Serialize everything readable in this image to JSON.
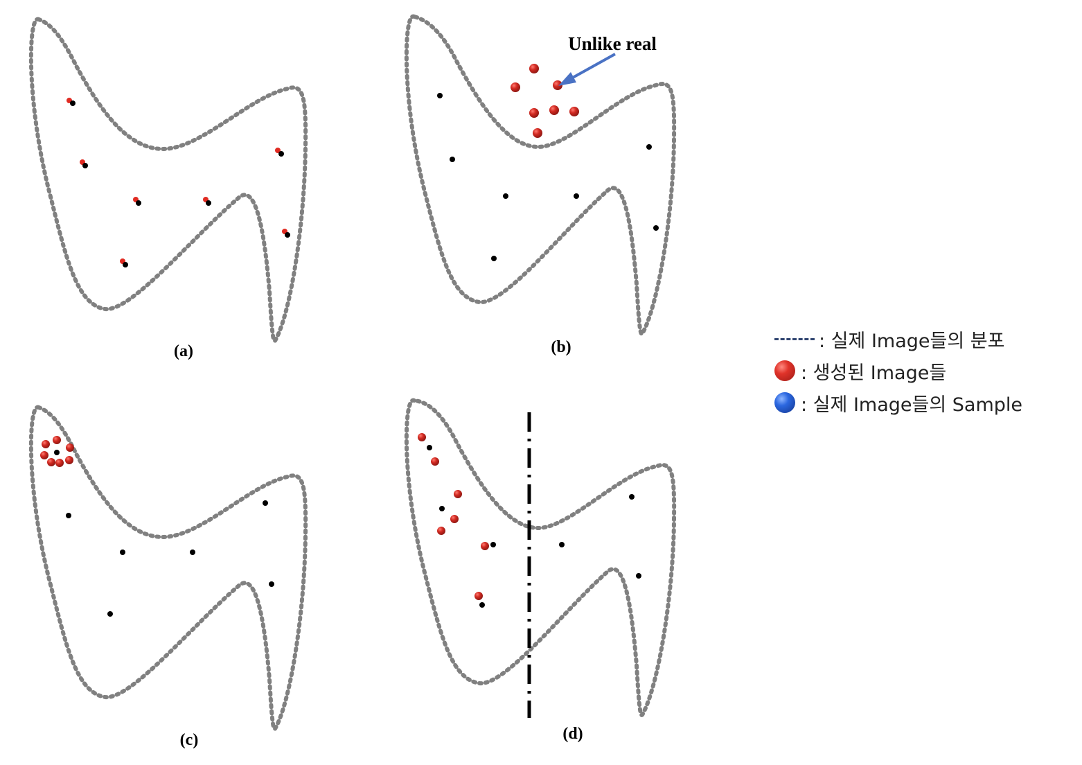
{
  "panels": [
    {
      "id": "a",
      "label": "(a)"
    },
    {
      "id": "b",
      "label": "(b)",
      "annotation": "Unlike real"
    },
    {
      "id": "c",
      "label": "(c)"
    },
    {
      "id": "d",
      "label": "(d)"
    }
  ],
  "legend": {
    "distribution": ": 실제 Image들의 분포",
    "generated": ": 생성된 Image들",
    "sample": ": 실제 Image들의 Sample"
  },
  "colors": {
    "boundary": "#808080",
    "real_sample": "#000000",
    "generated": "#c0231c",
    "arrow": "#4a72c4",
    "legend_dash": "#2f4470"
  },
  "icons": {
    "generated": "red-ball-icon",
    "sample": "blue-ball-icon"
  }
}
